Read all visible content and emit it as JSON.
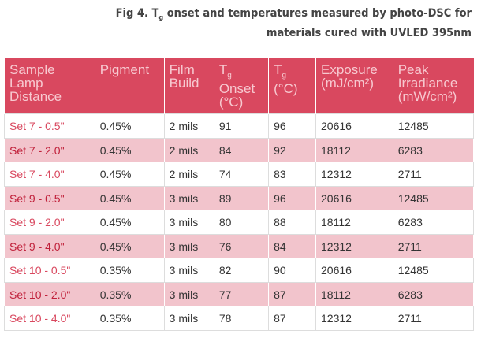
{
  "title": {
    "line1": {
      "pre": "Fig 4. T",
      "sub": "g",
      "post": " onset and temperatures measured by photo-DSC for"
    },
    "line2": "materials cured with UVLED 395nm"
  },
  "table": {
    "header": [
      {
        "text": "Sample Lamp Distance"
      },
      {
        "text": "Pigment"
      },
      {
        "text": "Film Build"
      },
      {
        "pre": "T",
        "sub": "g",
        "text": "Onset (°C)"
      },
      {
        "pre": "T",
        "sub": "g",
        "text": "(°C)"
      },
      {
        "text": "Exposure (mJ/cm²)"
      },
      {
        "text": "Peak Irradiance (mW/cm²)"
      }
    ],
    "rows": [
      [
        "Set 7 - 0.5\"",
        "0.45%",
        "2 mils",
        91,
        96,
        20616,
        12485
      ],
      [
        "Set 7 - 2.0\"",
        "0.45%",
        "2 mils",
        84,
        92,
        18112,
        6283
      ],
      [
        "Set 7 - 4.0\"",
        "0.45%",
        "2 mils",
        74,
        83,
        12312,
        2711
      ],
      [
        "Set 9 - 0.5\"",
        "0.45%",
        "3 mils",
        89,
        96,
        20616,
        12485
      ],
      [
        "Set 9 - 2.0\"",
        "0.45%",
        "3 mils",
        80,
        88,
        18112,
        6283
      ],
      [
        "Set 9 - 4.0\"",
        "0.45%",
        "3 mils",
        76,
        84,
        12312,
        2711
      ],
      [
        "Set 10 - 0.5\"",
        "0.35%",
        "3 mils",
        82,
        90,
        20616,
        12485
      ],
      [
        "Set 10 - 2.0\"",
        "0.35%",
        "3 mils",
        77,
        87,
        18112,
        6283
      ],
      [
        "Set 10 - 4.0\"",
        "0.35%",
        "3 mils",
        78,
        87,
        12312,
        2711
      ]
    ]
  }
}
